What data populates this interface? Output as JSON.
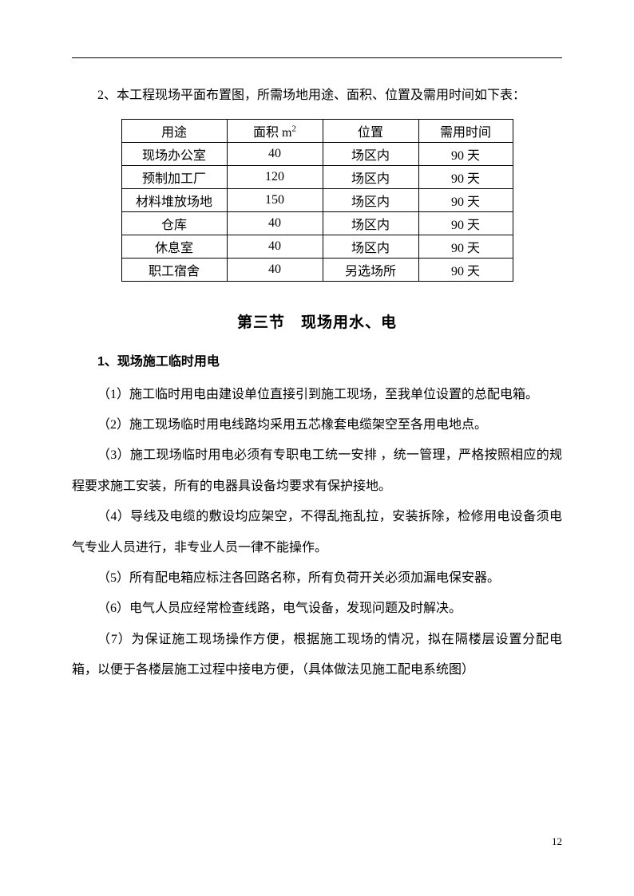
{
  "intro_para": "2、本工程现场平面布置图，所需场地用途、面积、位置及需用时间如下表：",
  "table": {
    "headers": {
      "use": "用途",
      "area_prefix": "面积 m",
      "area_sup": "2",
      "location": "位置",
      "time": "需用时间"
    },
    "rows": [
      {
        "use": "现场办公室",
        "area": "40",
        "location": "场区内",
        "time": "90 天"
      },
      {
        "use": "预制加工厂",
        "area": "120",
        "location": "场区内",
        "time": "90 天"
      },
      {
        "use": "材料堆放场地",
        "area": "150",
        "location": "场区内",
        "time": "90 天"
      },
      {
        "use": "仓库",
        "area": "40",
        "location": "场区内",
        "time": "90 天"
      },
      {
        "use": "休息室",
        "area": "40",
        "location": "场区内",
        "time": "90 天"
      },
      {
        "use": "职工宿舍",
        "area": "40",
        "location": "另选场所",
        "time": "90 天"
      }
    ]
  },
  "section_title": "第三节　现场用水、电",
  "sub_heading": "1、现场施工临时用电",
  "body_paras": [
    "（1）施工临时用电由建设单位直接引到施工现场，至我单位设置的总配电箱。",
    "（2）施工现场临时用电线路均采用五芯橡套电缆架空至各用电地点。",
    "（3）施工现场临时用电必须有专职电工统一安排 ，统一管理，严格按照相应的规程要求施工安装，所有的电器具设备均要求有保护接地。",
    "（4）导线及电缆的敷设均应架空，不得乱拖乱拉，安装拆除，检修用电设备须电气专业人员进行，非专业人员一律不能操作。",
    "（5）所有配电箱应标注各回路名称，所有负荷开关必须加漏电保安器。",
    "（6）电气人员应经常检查线路，电气设备，发现问题及时解决。",
    "（7）为保证施工现场操作方便，根据施工现场的情况，拟在隔楼层设置分配电箱，以便于各楼层施工过程中接电方便，（具体做法见施工配电系统图）"
  ],
  "page_number": "12"
}
